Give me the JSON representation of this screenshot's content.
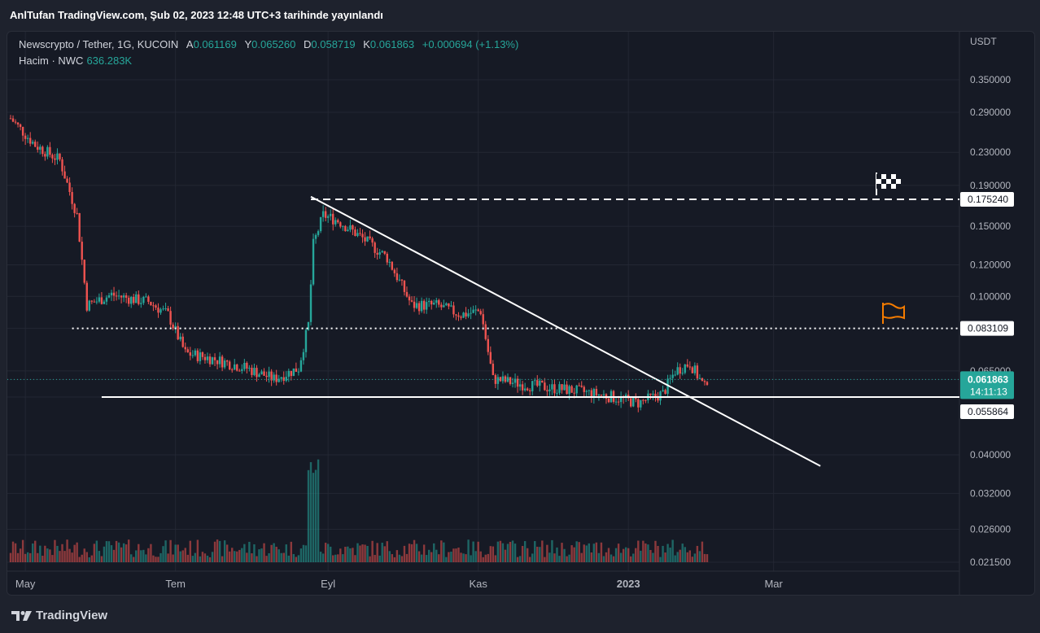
{
  "header": {
    "published": "AnlTufan TradingView.com, Şub 02, 2023 12:48 UTC+3 tarihinde yayınlandı"
  },
  "legend": {
    "symbol": "Newscrypto / Tether, 1G, KUCOIN",
    "open_label": "A",
    "open": "0.061169",
    "high_label": "Y",
    "high": "0.065260",
    "low_label": "D",
    "low": "0.058719",
    "close_label": "K",
    "close": "0.061863",
    "change": "+0.000694 (+1.13%)",
    "volume_label": "Hacim · NWC",
    "volume": "636.283K"
  },
  "footer": {
    "brand": "TradingView"
  },
  "colors": {
    "up": "#26a69a",
    "down": "#ef5350",
    "background": "#161a25",
    "drawing": "#ffffff",
    "flag": "#f57c00"
  },
  "chart_data": {
    "type": "candlestick",
    "y_axis_label": "USDT",
    "y_scale": "log",
    "y_ticks": [
      "0.350000",
      "0.290000",
      "0.230000",
      "0.190000",
      "0.150000",
      "0.120000",
      "0.100000",
      "0.083109",
      "0.065000",
      "0.061863",
      "0.055864",
      "0.040000",
      "0.032000",
      "0.026000",
      "0.021500"
    ],
    "y_tick_values": [
      0.35,
      0.29,
      0.23,
      0.19,
      0.15,
      0.12,
      0.1,
      0.083109,
      0.065,
      0.061863,
      0.055864,
      0.04,
      0.032,
      0.026,
      0.0215
    ],
    "x_ticks": [
      "May",
      "Tem",
      "Eyl",
      "Kas",
      "2023",
      "Mar"
    ],
    "x_tick_dates": [
      "2022-05-01",
      "2022-07-01",
      "2022-09-01",
      "2022-11-01",
      "2023-01-01",
      "2023-03-01"
    ],
    "x_range": [
      "2022-04-25",
      "2023-04-25"
    ],
    "price_labels": {
      "resistance": "0.175240",
      "support_high": "0.083109",
      "current": "0.061863",
      "countdown": "14:11:13",
      "support_low": "0.055864"
    },
    "levels": {
      "resistance": 0.17524,
      "support_high": 0.083109,
      "current": 0.061863,
      "support_low": 0.055864
    },
    "trendline": {
      "start": [
        "2022-08-25",
        0.178
      ],
      "end": [
        "2023-03-20",
        0.0375
      ]
    },
    "flags": {
      "target": "checkered-flag",
      "support": "orange-flag"
    },
    "series_approx_close": [
      [
        "2022-04-25",
        0.28
      ],
      [
        "2022-05-05",
        0.24
      ],
      [
        "2022-05-15",
        0.22
      ],
      [
        "2022-05-22",
        0.16
      ],
      [
        "2022-05-26",
        0.095
      ],
      [
        "2022-06-05",
        0.101
      ],
      [
        "2022-06-15",
        0.098
      ],
      [
        "2022-06-20",
        0.097
      ],
      [
        "2022-06-28",
        0.09
      ],
      [
        "2022-07-05",
        0.072
      ],
      [
        "2022-07-15",
        0.07
      ],
      [
        "2022-07-30",
        0.066
      ],
      [
        "2022-08-10",
        0.062
      ],
      [
        "2022-08-20",
        0.066
      ],
      [
        "2022-08-24",
        0.085
      ],
      [
        "2022-08-26",
        0.135
      ],
      [
        "2022-08-30",
        0.16
      ],
      [
        "2022-09-05",
        0.155
      ],
      [
        "2022-09-15",
        0.14
      ],
      [
        "2022-09-25",
        0.125
      ],
      [
        "2022-10-05",
        0.095
      ],
      [
        "2022-10-15",
        0.095
      ],
      [
        "2022-10-25",
        0.09
      ],
      [
        "2022-11-02",
        0.092
      ],
      [
        "2022-11-07",
        0.062
      ],
      [
        "2022-11-20",
        0.06
      ],
      [
        "2022-12-10",
        0.058
      ],
      [
        "2022-12-25",
        0.056
      ],
      [
        "2023-01-05",
        0.054
      ],
      [
        "2023-01-15",
        0.057
      ],
      [
        "2023-01-20",
        0.065
      ],
      [
        "2023-01-26",
        0.068
      ],
      [
        "2023-02-01",
        0.059
      ],
      [
        "2023-02-02",
        0.061863
      ]
    ],
    "volume_note": "volume histogram with largest spike near 2022-08-26"
  }
}
